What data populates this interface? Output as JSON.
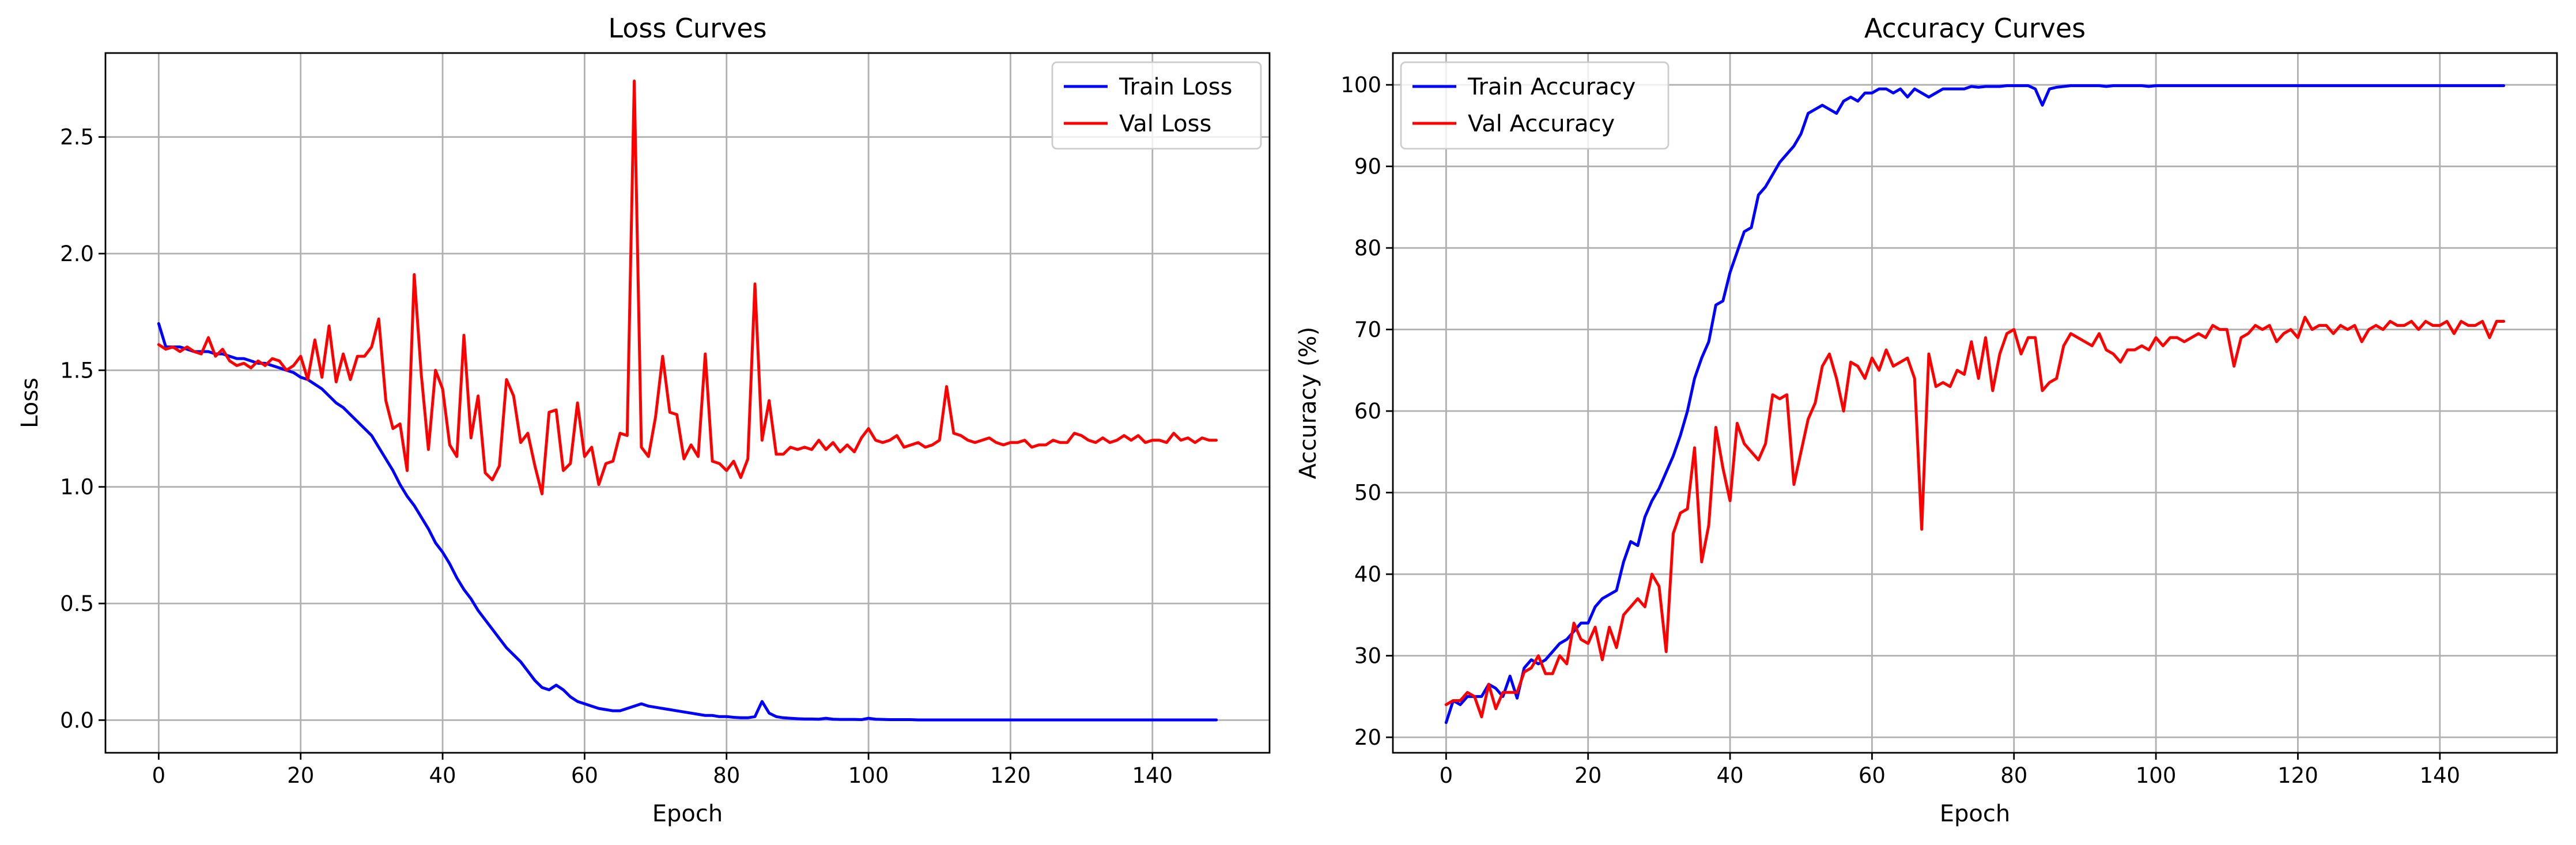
{
  "chart_data": [
    {
      "type": "line",
      "title": "Loss Curves",
      "xlabel": "Epoch",
      "ylabel": "Loss",
      "xlim": [
        -7.5,
        156.5
      ],
      "ylim": [
        -0.14,
        2.86
      ],
      "xticks": [
        0,
        20,
        40,
        60,
        80,
        100,
        120,
        140
      ],
      "yticks": [
        0.0,
        0.5,
        1.0,
        1.5,
        2.0,
        2.5
      ],
      "ytick_labels": [
        "0.0",
        "0.5",
        "1.0",
        "1.5",
        "2.0",
        "2.5"
      ],
      "grid": true,
      "legend_position": "top-right",
      "series": [
        {
          "name": "Train Loss",
          "color": "#0000ff",
          "values": [
            1.7,
            1.6,
            1.6,
            1.6,
            1.59,
            1.58,
            1.58,
            1.58,
            1.57,
            1.57,
            1.56,
            1.55,
            1.55,
            1.54,
            1.53,
            1.53,
            1.52,
            1.51,
            1.5,
            1.49,
            1.47,
            1.46,
            1.44,
            1.42,
            1.39,
            1.36,
            1.34,
            1.31,
            1.28,
            1.25,
            1.22,
            1.17,
            1.12,
            1.07,
            1.01,
            0.96,
            0.92,
            0.87,
            0.82,
            0.76,
            0.72,
            0.67,
            0.61,
            0.56,
            0.52,
            0.47,
            0.43,
            0.39,
            0.35,
            0.31,
            0.28,
            0.25,
            0.21,
            0.17,
            0.14,
            0.13,
            0.15,
            0.13,
            0.1,
            0.08,
            0.07,
            0.06,
            0.05,
            0.045,
            0.04,
            0.04,
            0.05,
            0.06,
            0.07,
            0.06,
            0.055,
            0.05,
            0.045,
            0.04,
            0.035,
            0.03,
            0.025,
            0.02,
            0.02,
            0.015,
            0.015,
            0.012,
            0.01,
            0.01,
            0.015,
            0.08,
            0.03,
            0.015,
            0.01,
            0.008,
            0.006,
            0.005,
            0.005,
            0.004,
            0.008,
            0.004,
            0.003,
            0.003,
            0.003,
            0.002,
            0.008,
            0.004,
            0.003,
            0.002,
            0.002,
            0.002,
            0.002,
            0.001,
            0.001,
            0.001,
            0.001,
            0.001,
            0.001,
            0.001,
            0.001,
            0.001,
            0.001,
            0.001,
            0.001,
            0.001,
            0.001,
            0.001,
            0.001,
            0.001,
            0.001,
            0.001,
            0.001,
            0.001,
            0.001,
            0.001,
            0.001,
            0.001,
            0.001,
            0.001,
            0.001,
            0.001,
            0.001,
            0.001,
            0.001,
            0.001,
            0.001,
            0.001,
            0.001,
            0.001,
            0.001,
            0.001,
            0.001,
            0.001,
            0.001,
            0.001
          ]
        },
        {
          "name": "Val Loss",
          "color": "#ff0000",
          "values": [
            1.61,
            1.59,
            1.6,
            1.58,
            1.6,
            1.58,
            1.57,
            1.64,
            1.56,
            1.59,
            1.54,
            1.52,
            1.53,
            1.51,
            1.54,
            1.52,
            1.55,
            1.54,
            1.5,
            1.52,
            1.56,
            1.46,
            1.63,
            1.47,
            1.69,
            1.45,
            1.57,
            1.46,
            1.56,
            1.56,
            1.6,
            1.72,
            1.37,
            1.25,
            1.27,
            1.07,
            1.91,
            1.48,
            1.16,
            1.5,
            1.42,
            1.18,
            1.13,
            1.65,
            1.21,
            1.39,
            1.06,
            1.03,
            1.09,
            1.46,
            1.39,
            1.19,
            1.23,
            1.09,
            0.97,
            1.32,
            1.33,
            1.07,
            1.1,
            1.36,
            1.13,
            1.17,
            1.01,
            1.1,
            1.11,
            1.23,
            1.22,
            2.74,
            1.17,
            1.13,
            1.3,
            1.56,
            1.32,
            1.31,
            1.12,
            1.18,
            1.13,
            1.57,
            1.11,
            1.1,
            1.07,
            1.11,
            1.04,
            1.12,
            1.87,
            1.2,
            1.37,
            1.14,
            1.14,
            1.17,
            1.16,
            1.17,
            1.16,
            1.2,
            1.16,
            1.19,
            1.15,
            1.18,
            1.15,
            1.21,
            1.25,
            1.2,
            1.19,
            1.2,
            1.22,
            1.17,
            1.18,
            1.19,
            1.17,
            1.18,
            1.2,
            1.43,
            1.23,
            1.22,
            1.2,
            1.19,
            1.2,
            1.21,
            1.19,
            1.18,
            1.19,
            1.19,
            1.2,
            1.17,
            1.18,
            1.18,
            1.2,
            1.19,
            1.19,
            1.23,
            1.22,
            1.2,
            1.19,
            1.21,
            1.19,
            1.2,
            1.22,
            1.2,
            1.22,
            1.19,
            1.2,
            1.2,
            1.19,
            1.23,
            1.2,
            1.21,
            1.19,
            1.21,
            1.2,
            1.2
          ]
        }
      ]
    },
    {
      "type": "line",
      "title": "Accuracy Curves",
      "xlabel": "Epoch",
      "ylabel": "Accuracy (%)",
      "xlim": [
        -7.5,
        156.5
      ],
      "ylim": [
        18.1,
        103.9
      ],
      "xticks": [
        0,
        20,
        40,
        60,
        80,
        100,
        120,
        140
      ],
      "yticks": [
        20,
        30,
        40,
        50,
        60,
        70,
        80,
        90,
        100
      ],
      "ytick_labels": [
        "20",
        "30",
        "40",
        "50",
        "60",
        "70",
        "80",
        "90",
        "100"
      ],
      "grid": true,
      "legend_position": "top-left",
      "series": [
        {
          "name": "Train Accuracy",
          "color": "#0000ff",
          "values": [
            21.8,
            24.5,
            24.0,
            25.0,
            25.0,
            25.0,
            26.5,
            26.0,
            25.0,
            27.5,
            24.8,
            28.5,
            29.5,
            29.0,
            29.5,
            30.5,
            31.5,
            32.0,
            33.0,
            34.0,
            34.0,
            36.0,
            37.0,
            37.5,
            38.0,
            41.5,
            44.0,
            43.5,
            47.0,
            49.0,
            50.5,
            52.5,
            54.5,
            57.0,
            60.0,
            64.0,
            66.5,
            68.5,
            73.0,
            73.5,
            77.0,
            79.5,
            82.0,
            82.5,
            86.5,
            87.5,
            89.0,
            90.5,
            91.5,
            92.5,
            94.0,
            96.5,
            97.0,
            97.5,
            97.0,
            96.5,
            98.0,
            98.5,
            98.0,
            99.0,
            99.0,
            99.5,
            99.5,
            99.0,
            99.5,
            98.5,
            99.5,
            99.0,
            98.5,
            99.0,
            99.5,
            99.5,
            99.5,
            99.5,
            99.8,
            99.7,
            99.8,
            99.8,
            99.8,
            99.9,
            99.9,
            99.9,
            99.9,
            99.5,
            97.5,
            99.5,
            99.7,
            99.8,
            99.9,
            99.9,
            99.9,
            99.9,
            99.9,
            99.8,
            99.9,
            99.9,
            99.9,
            99.9,
            99.9,
            99.8,
            99.9,
            99.9,
            99.9,
            99.9,
            99.9,
            99.9,
            99.9,
            99.9,
            99.9,
            99.9,
            99.9,
            99.9,
            99.9,
            99.9,
            99.9,
            99.9,
            99.9,
            99.9,
            99.9,
            99.9,
            99.9,
            99.9,
            99.9,
            99.9,
            99.9,
            99.9,
            99.9,
            99.9,
            99.9,
            99.9,
            99.9,
            99.9,
            99.9,
            99.9,
            99.9,
            99.9,
            99.9,
            99.9,
            99.9,
            99.9,
            99.9,
            99.9,
            99.9,
            99.9,
            99.9,
            99.9,
            99.9,
            99.9,
            99.9,
            99.9
          ]
        },
        {
          "name": "Val Accuracy",
          "color": "#ff0000",
          "values": [
            24.0,
            24.5,
            24.5,
            25.5,
            25.0,
            22.5,
            26.5,
            23.5,
            25.5,
            25.5,
            25.5,
            28.0,
            28.5,
            30.0,
            27.8,
            27.8,
            30.0,
            29.0,
            34.0,
            32.0,
            31.5,
            33.5,
            29.5,
            33.5,
            31.0,
            35.0,
            36.0,
            37.0,
            36.0,
            40.0,
            38.5,
            30.5,
            45.0,
            47.5,
            48.0,
            55.5,
            41.5,
            46.0,
            58.0,
            53.0,
            49.0,
            58.5,
            56.0,
            55.0,
            54.0,
            56.0,
            62.0,
            61.5,
            62.0,
            51.0,
            55.0,
            59.0,
            61.0,
            65.5,
            67.0,
            64.0,
            60.0,
            66.0,
            65.5,
            64.0,
            66.5,
            65.0,
            67.5,
            65.5,
            66.0,
            66.5,
            64.0,
            45.5,
            67.0,
            63.0,
            63.5,
            63.0,
            65.0,
            64.5,
            68.5,
            64.0,
            69.0,
            62.5,
            67.0,
            69.5,
            70.0,
            67.0,
            69.0,
            69.0,
            62.5,
            63.5,
            64.0,
            68.0,
            69.5,
            69.0,
            68.5,
            68.0,
            69.5,
            67.5,
            67.0,
            66.0,
            67.5,
            67.5,
            68.0,
            67.5,
            69.0,
            68.0,
            69.0,
            69.0,
            68.5,
            69.0,
            69.5,
            69.0,
            70.5,
            70.0,
            70.0,
            65.5,
            69.0,
            69.5,
            70.5,
            70.0,
            70.5,
            68.5,
            69.5,
            70.0,
            69.0,
            71.5,
            70.0,
            70.5,
            70.5,
            69.5,
            70.5,
            70.0,
            70.5,
            68.5,
            70.0,
            70.5,
            70.0,
            71.0,
            70.5,
            70.5,
            71.0,
            70.0,
            71.0,
            70.5,
            70.5,
            71.0,
            69.5,
            71.0,
            70.5,
            70.5,
            71.0,
            69.0,
            71.0,
            71.0
          ]
        }
      ]
    }
  ]
}
